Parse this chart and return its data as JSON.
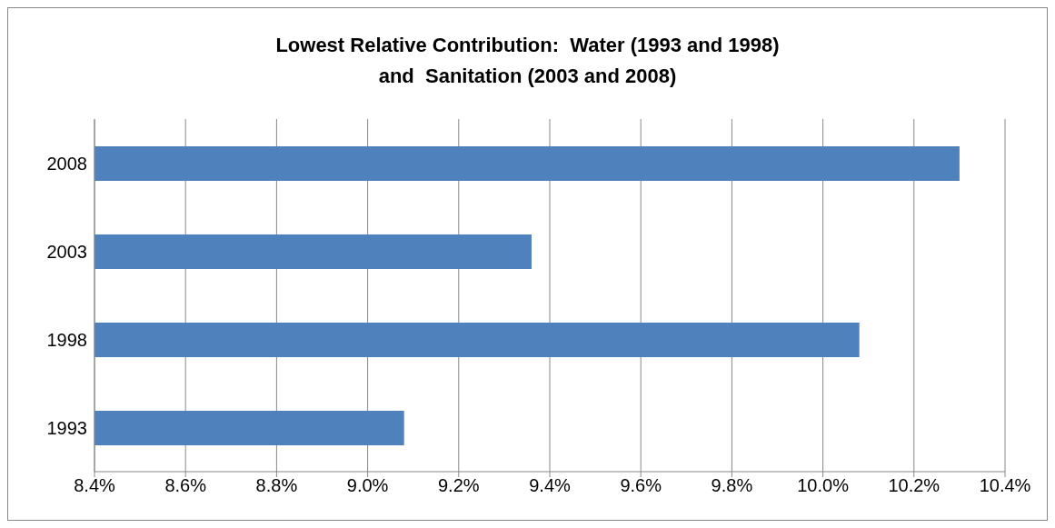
{
  "chart_data": {
    "type": "bar",
    "orientation": "horizontal",
    "title": "Lowest Relative Contribution:  Water (1993 and 1998)\nand  Sanitation (2003 and 2008)",
    "categories": [
      "2008",
      "2003",
      "1998",
      "1993"
    ],
    "values": [
      10.3,
      9.36,
      10.08,
      9.08
    ],
    "color": "#4f81bd",
    "xlim": [
      8.4,
      10.4
    ],
    "xticks": [
      {
        "value": 8.4,
        "label": "8.4%"
      },
      {
        "value": 8.6,
        "label": "8.6%"
      },
      {
        "value": 8.8,
        "label": "8.8%"
      },
      {
        "value": 9.0,
        "label": "9.0%"
      },
      {
        "value": 9.2,
        "label": "9.2%"
      },
      {
        "value": 9.4,
        "label": "9.4%"
      },
      {
        "value": 9.6,
        "label": "9.6%"
      },
      {
        "value": 9.8,
        "label": "9.8%"
      },
      {
        "value": 10.0,
        "label": "10.0%"
      },
      {
        "value": 10.2,
        "label": "10.2%"
      },
      {
        "value": 10.4,
        "label": "10.4%"
      }
    ],
    "grid": "x",
    "legend": false
  }
}
